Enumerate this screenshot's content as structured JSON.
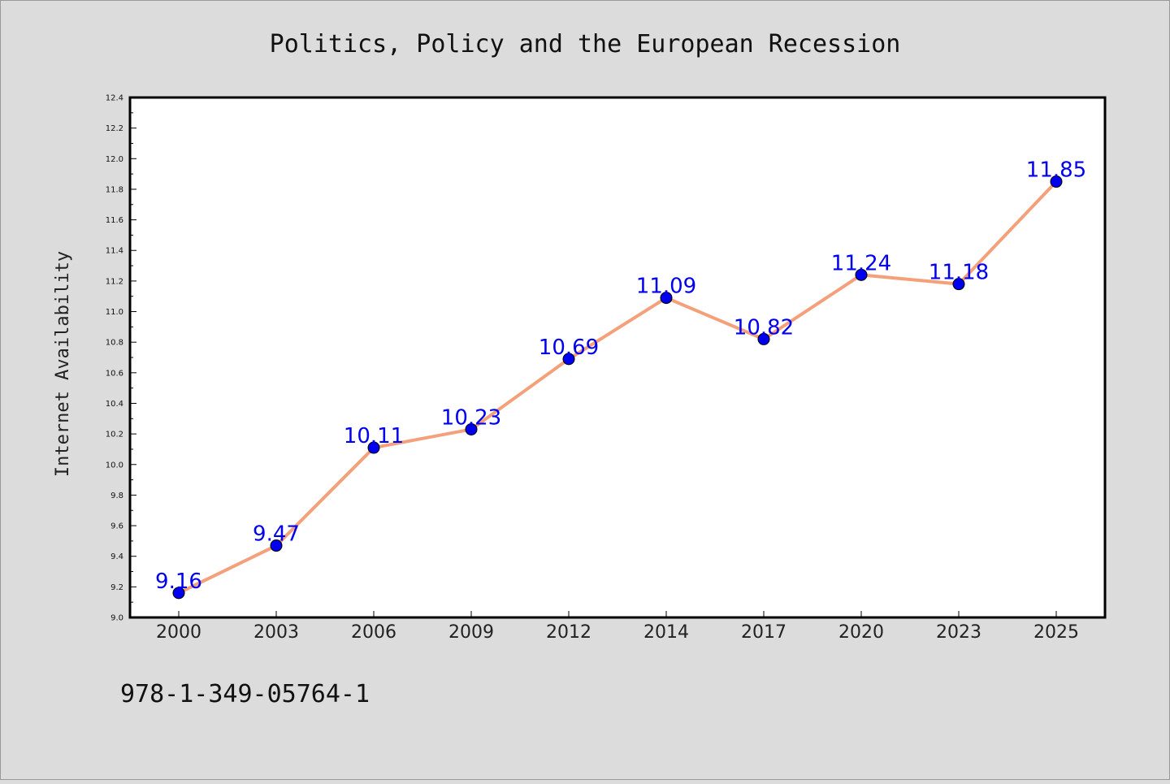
{
  "chart_data": {
    "type": "line",
    "title": "Politics, Policy and the European Recession",
    "xlabel": "",
    "ylabel": "Internet Availability",
    "categories": [
      "2000",
      "2003",
      "2006",
      "2009",
      "2012",
      "2014",
      "2017",
      "2020",
      "2023",
      "2025"
    ],
    "series": [
      {
        "values": [
          9.16,
          9.47,
          10.11,
          10.23,
          10.69,
          11.09,
          10.82,
          11.24,
          11.18,
          11.85
        ]
      }
    ],
    "data_labels": [
      "9.16",
      "9.47",
      "10.11",
      "10.23",
      "10.69",
      "11.09",
      "10.82",
      "11.24",
      "11.18",
      "11.85"
    ],
    "ylim": [
      9.0,
      12.4
    ],
    "yticks": [
      "9.0",
      "9.2",
      "9.4",
      "9.6",
      "9.8",
      "10.0",
      "10.2",
      "10.4",
      "10.6",
      "10.8",
      "11.0",
      "11.2",
      "11.4",
      "11.6",
      "11.8",
      "12.0",
      "12.2",
      "12.4"
    ],
    "grid": false,
    "legend": "none",
    "line_color": "#f4a07a",
    "marker_color": "#0000ee",
    "label_color": "#0000ee"
  },
  "footer_id": "978-1-349-05764-1"
}
